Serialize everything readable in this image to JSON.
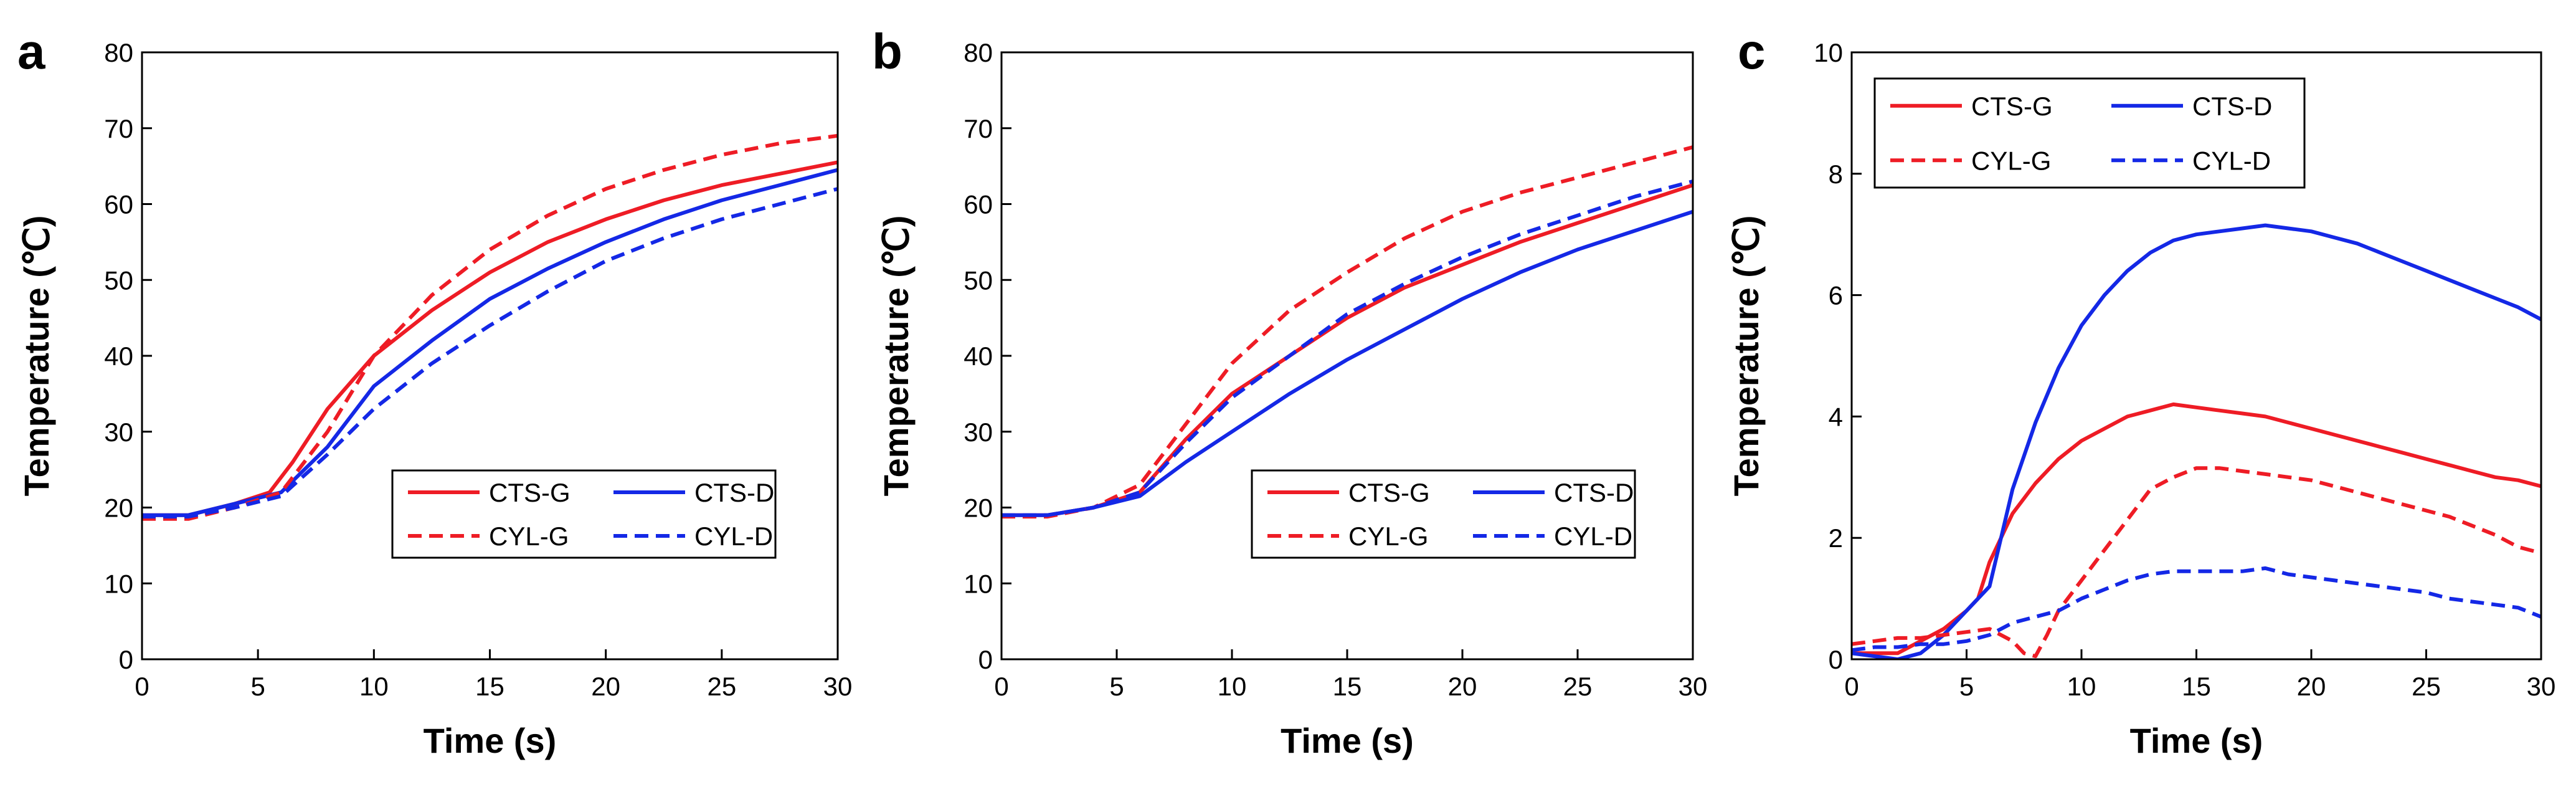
{
  "chart_data": [
    {
      "type": "line",
      "panel_label": "a",
      "xlabel": "Time (s)",
      "ylabel": "Temperature (℃)",
      "xlim": [
        0,
        30
      ],
      "ylim": [
        0,
        80
      ],
      "xticks": [
        "0",
        "5",
        "10",
        "15",
        "20",
        "25",
        "30"
      ],
      "yticks": [
        "0",
        "10",
        "20",
        "30",
        "40",
        "50",
        "60",
        "70",
        "80"
      ],
      "legend_position": "lower-right",
      "series": [
        {
          "name": "CTS-G",
          "color": "#ee1c25",
          "dash": "solid",
          "x": [
            0,
            2,
            4,
            5.5,
            6.5,
            8,
            10,
            12.5,
            15,
            17.5,
            20,
            22.5,
            25,
            27.5,
            30
          ],
          "y": [
            19,
            19,
            20.5,
            22,
            26,
            33,
            40,
            46,
            51,
            55,
            58,
            60.5,
            62.5,
            64,
            65.5
          ]
        },
        {
          "name": "CTS-D",
          "color": "#1428e6",
          "dash": "solid",
          "x": [
            0,
            2,
            4,
            6,
            8,
            10,
            12.5,
            15,
            17.5,
            20,
            22.5,
            25,
            27.5,
            30
          ],
          "y": [
            19,
            19,
            20.5,
            22,
            28,
            36,
            42,
            47.5,
            51.5,
            55,
            58,
            60.5,
            62.5,
            64.5
          ]
        },
        {
          "name": "CYL-G",
          "color": "#ee1c25",
          "dash": "dashed",
          "x": [
            0,
            2,
            4,
            6,
            8,
            10,
            12.5,
            15,
            17.5,
            20,
            22.5,
            25,
            27.5,
            30
          ],
          "y": [
            18.5,
            18.5,
            20,
            22,
            30,
            40,
            48,
            54,
            58.5,
            62,
            64.5,
            66.5,
            68,
            69
          ]
        },
        {
          "name": "CYL-D",
          "color": "#1428e6",
          "dash": "dashed",
          "x": [
            0,
            2,
            4,
            6,
            8,
            10,
            12.5,
            15,
            17.5,
            20,
            22.5,
            25,
            27.5,
            30
          ],
          "y": [
            18.8,
            18.8,
            20,
            21.5,
            27,
            33,
            39,
            44,
            48.5,
            52.5,
            55.5,
            58,
            60,
            62
          ]
        }
      ]
    },
    {
      "type": "line",
      "panel_label": "b",
      "xlabel": "Time (s)",
      "ylabel": "Temperature (℃)",
      "xlim": [
        0,
        30
      ],
      "ylim": [
        0,
        80
      ],
      "xticks": [
        "0",
        "5",
        "10",
        "15",
        "20",
        "25",
        "30"
      ],
      "yticks": [
        "0",
        "10",
        "20",
        "30",
        "40",
        "50",
        "60",
        "70",
        "80"
      ],
      "legend_position": "lower-right",
      "series": [
        {
          "name": "CTS-G",
          "color": "#ee1c25",
          "dash": "solid",
          "x": [
            0,
            2,
            4,
            6,
            8,
            10,
            12.5,
            15,
            17.5,
            20,
            22.5,
            25,
            27.5,
            30
          ],
          "y": [
            19,
            19,
            20,
            22,
            29,
            35,
            40,
            45,
            49,
            52,
            55,
            57.5,
            60,
            62.5
          ]
        },
        {
          "name": "CTS-D",
          "color": "#1428e6",
          "dash": "solid",
          "x": [
            0,
            2,
            4,
            6,
            8,
            10,
            12.5,
            15,
            17.5,
            20,
            22.5,
            25,
            27.5,
            30
          ],
          "y": [
            19,
            19,
            20,
            21.5,
            26,
            30,
            35,
            39.5,
            43.5,
            47.5,
            51,
            54,
            56.5,
            59
          ]
        },
        {
          "name": "CYL-G",
          "color": "#ee1c25",
          "dash": "dashed",
          "x": [
            0,
            2,
            4,
            6,
            8,
            10,
            12.5,
            15,
            17.5,
            20,
            22.5,
            25,
            27.5,
            30
          ],
          "y": [
            18.8,
            18.8,
            20,
            23,
            31,
            39,
            46,
            51,
            55.5,
            59,
            61.5,
            63.5,
            65.5,
            67.5
          ]
        },
        {
          "name": "CYL-D",
          "color": "#1428e6",
          "dash": "dashed",
          "x": [
            0,
            2,
            4,
            6,
            8,
            10,
            12.5,
            15,
            17.5,
            20,
            22.5,
            25,
            27.5,
            30
          ],
          "y": [
            19,
            19,
            20,
            22,
            28.5,
            34.5,
            40,
            45.5,
            49.5,
            53,
            56,
            58.5,
            61,
            63
          ]
        }
      ]
    },
    {
      "type": "line",
      "panel_label": "c",
      "xlabel": "Time (s)",
      "ylabel": "Temperature (℃)",
      "xlim": [
        0,
        30
      ],
      "ylim": [
        0,
        10
      ],
      "xticks": [
        "0",
        "5",
        "10",
        "15",
        "20",
        "25",
        "30"
      ],
      "yticks": [
        "0",
        "2",
        "4",
        "6",
        "8",
        "10"
      ],
      "legend_position": "top-left",
      "series": [
        {
          "name": "CTS-G",
          "color": "#ee1c25",
          "dash": "solid",
          "x": [
            0,
            1,
            2,
            3,
            4,
            5,
            5.5,
            6,
            7,
            8,
            9,
            10,
            11,
            12,
            13,
            14,
            15,
            16,
            17,
            18,
            19,
            20,
            21,
            22,
            23,
            24,
            25,
            26,
            27,
            28,
            29,
            30
          ],
          "y": [
            0.1,
            0.1,
            0.1,
            0.3,
            0.5,
            0.8,
            1.0,
            1.6,
            2.4,
            2.9,
            3.3,
            3.6,
            3.8,
            4.0,
            4.1,
            4.2,
            4.15,
            4.1,
            4.05,
            4.0,
            3.9,
            3.8,
            3.7,
            3.6,
            3.5,
            3.4,
            3.3,
            3.2,
            3.1,
            3.0,
            2.95,
            2.85
          ]
        },
        {
          "name": "CTS-D",
          "color": "#1428e6",
          "dash": "solid",
          "x": [
            0,
            1,
            2,
            3,
            4,
            5,
            6,
            7,
            8,
            9,
            10,
            11,
            12,
            13,
            14,
            15,
            16,
            17,
            18,
            19,
            20,
            21,
            22,
            23,
            24,
            25,
            26,
            27,
            28,
            29,
            30
          ],
          "y": [
            0.1,
            0.05,
            0,
            0.1,
            0.4,
            0.8,
            1.2,
            2.8,
            3.9,
            4.8,
            5.5,
            6.0,
            6.4,
            6.7,
            6.9,
            7.0,
            7.05,
            7.1,
            7.15,
            7.1,
            7.05,
            6.95,
            6.85,
            6.7,
            6.55,
            6.4,
            6.25,
            6.1,
            5.95,
            5.8,
            5.6
          ]
        },
        {
          "name": "CYL-G",
          "color": "#ee1c25",
          "dash": "dashed",
          "x": [
            0,
            1,
            2,
            3,
            4,
            5,
            6,
            7,
            7.5,
            8,
            8.5,
            9,
            10,
            11,
            12,
            13,
            14,
            15,
            16,
            17,
            18,
            19,
            20,
            21,
            22,
            23,
            24,
            25,
            26,
            27,
            28,
            29,
            30
          ],
          "y": [
            0.25,
            0.3,
            0.35,
            0.35,
            0.4,
            0.45,
            0.5,
            0.3,
            0.1,
            0.05,
            0.4,
            0.8,
            1.3,
            1.8,
            2.3,
            2.8,
            3.0,
            3.15,
            3.15,
            3.1,
            3.05,
            3.0,
            2.95,
            2.85,
            2.75,
            2.65,
            2.55,
            2.45,
            2.35,
            2.2,
            2.05,
            1.85,
            1.75
          ]
        },
        {
          "name": "CYL-D",
          "color": "#1428e6",
          "dash": "dashed",
          "x": [
            0,
            1,
            2,
            3,
            4,
            5,
            6,
            7,
            8,
            9,
            10,
            11,
            12,
            13,
            14,
            15,
            16,
            17,
            18,
            19,
            20,
            21,
            22,
            23,
            24,
            25,
            26,
            27,
            28,
            29,
            30
          ],
          "y": [
            0.15,
            0.2,
            0.2,
            0.25,
            0.25,
            0.3,
            0.4,
            0.6,
            0.7,
            0.8,
            1.0,
            1.15,
            1.3,
            1.4,
            1.45,
            1.45,
            1.45,
            1.45,
            1.5,
            1.4,
            1.35,
            1.3,
            1.25,
            1.2,
            1.15,
            1.1,
            1.0,
            0.95,
            0.9,
            0.85,
            0.7
          ]
        }
      ]
    }
  ]
}
